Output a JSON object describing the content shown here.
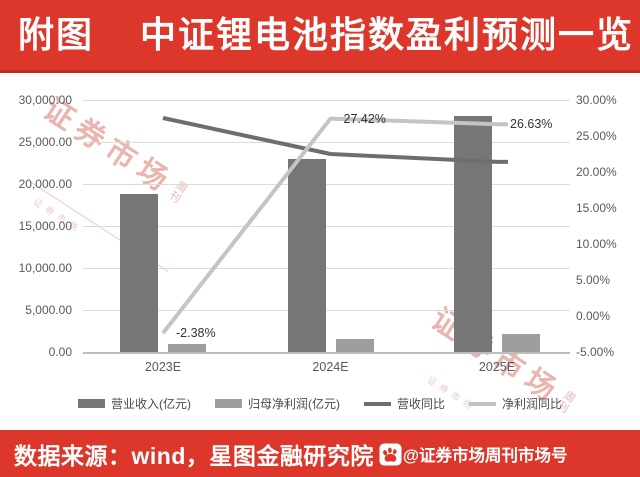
{
  "header": {
    "tag": "附图",
    "title": "中证锂电池指数盈利预测一览"
  },
  "watermark": {
    "large": "证券市场",
    "small_top": "周",
    "small_bottom": "刊"
  },
  "footer": {
    "source": "数据来源：wind，星图金融研究院",
    "icon": "baidu-paw-icon",
    "handle": "@证券市场周刊市场号"
  },
  "colors": {
    "brand_red": "#DC372A",
    "bar_dark": "#767676",
    "bar_light": "#9E9E9E",
    "line_dark": "#6E6E6E",
    "line_light": "#C4C4C4",
    "grid": "#DCDCDC",
    "axis_text": "#595959",
    "label_text": "#333333",
    "watermark_pink": "#D8766E"
  },
  "chart_data": {
    "type": "combo-bar-line",
    "title": "中证锂电池指数盈利预测一览",
    "categories": [
      "2023E",
      "2024E",
      "2025E"
    ],
    "bar_series": [
      {
        "key": "revenue",
        "name": "营业收入(亿元)",
        "axis": "left",
        "values": [
          18800,
          23000,
          28100
        ]
      },
      {
        "key": "net_profit",
        "name": "归母净利润(亿元)",
        "axis": "left",
        "values": [
          1000,
          1600,
          2150
        ]
      }
    ],
    "line_series": [
      {
        "key": "revenue_yoy",
        "name": "营收同比",
        "axis": "right",
        "values": [
          27.5,
          22.5,
          21.4
        ],
        "point_labels": [
          "",
          "",
          ""
        ]
      },
      {
        "key": "net_profit_yoy",
        "name": "净利润同比",
        "axis": "right",
        "values": [
          -2.38,
          27.42,
          26.63
        ],
        "point_labels": [
          "-2.38%",
          "27.42%",
          "26.63%"
        ]
      }
    ],
    "left_axis": {
      "min": 0,
      "max": 30000,
      "step": 5000,
      "ticks": [
        "30,000.00",
        "25,000.00",
        "20,000.00",
        "15,000.00",
        "10,000.00",
        "5,000.00",
        "0.00"
      ]
    },
    "right_axis": {
      "min": -5,
      "max": 30,
      "step": 5,
      "ticks": [
        "30.00%",
        "25.00%",
        "20.00%",
        "15.00%",
        "10.00%",
        "5.00%",
        "0.00%",
        "-5.00%"
      ]
    },
    "legend": [
      {
        "key": "revenue",
        "label": "营业收入(亿元)",
        "type": "bar",
        "colorKey": "bar_dark"
      },
      {
        "key": "net_profit",
        "label": "归母净利润(亿元)",
        "type": "bar",
        "colorKey": "bar_light"
      },
      {
        "key": "revenue_yoy",
        "label": "营收同比",
        "type": "line",
        "colorKey": "line_dark"
      },
      {
        "key": "net_profit_yoy",
        "label": "净利润同比",
        "type": "line",
        "colorKey": "line_light"
      }
    ],
    "grid": true,
    "legend_position": "bottom"
  }
}
